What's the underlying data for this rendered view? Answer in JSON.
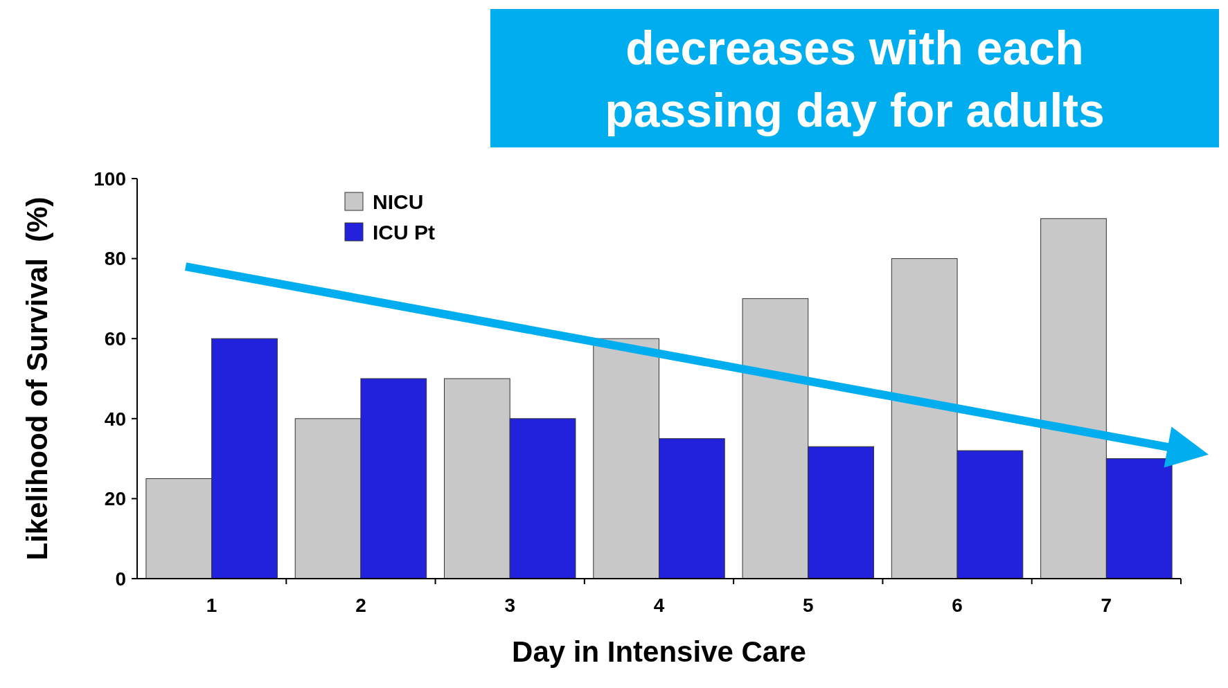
{
  "chart_data": {
    "type": "bar",
    "xlabel": "Day in Intensive Care",
    "ylabel": "Likelihood of Survival  (%)",
    "categories": [
      "1",
      "2",
      "3",
      "4",
      "5",
      "6",
      "7"
    ],
    "series": [
      {
        "name": "NICU",
        "color": "#c8c8c8",
        "values": [
          25,
          40,
          50,
          60,
          70,
          80,
          90
        ]
      },
      {
        "name": "ICU Pt",
        "color": "#2222dd",
        "values": [
          60,
          50,
          40,
          35,
          33,
          32,
          30
        ]
      }
    ],
    "ylim": [
      0,
      100
    ],
    "yticks": [
      0,
      20,
      40,
      60,
      80,
      100
    ],
    "legend": "top left",
    "grid": false,
    "annotations": [
      "decreases with each passing day for adults"
    ]
  }
}
